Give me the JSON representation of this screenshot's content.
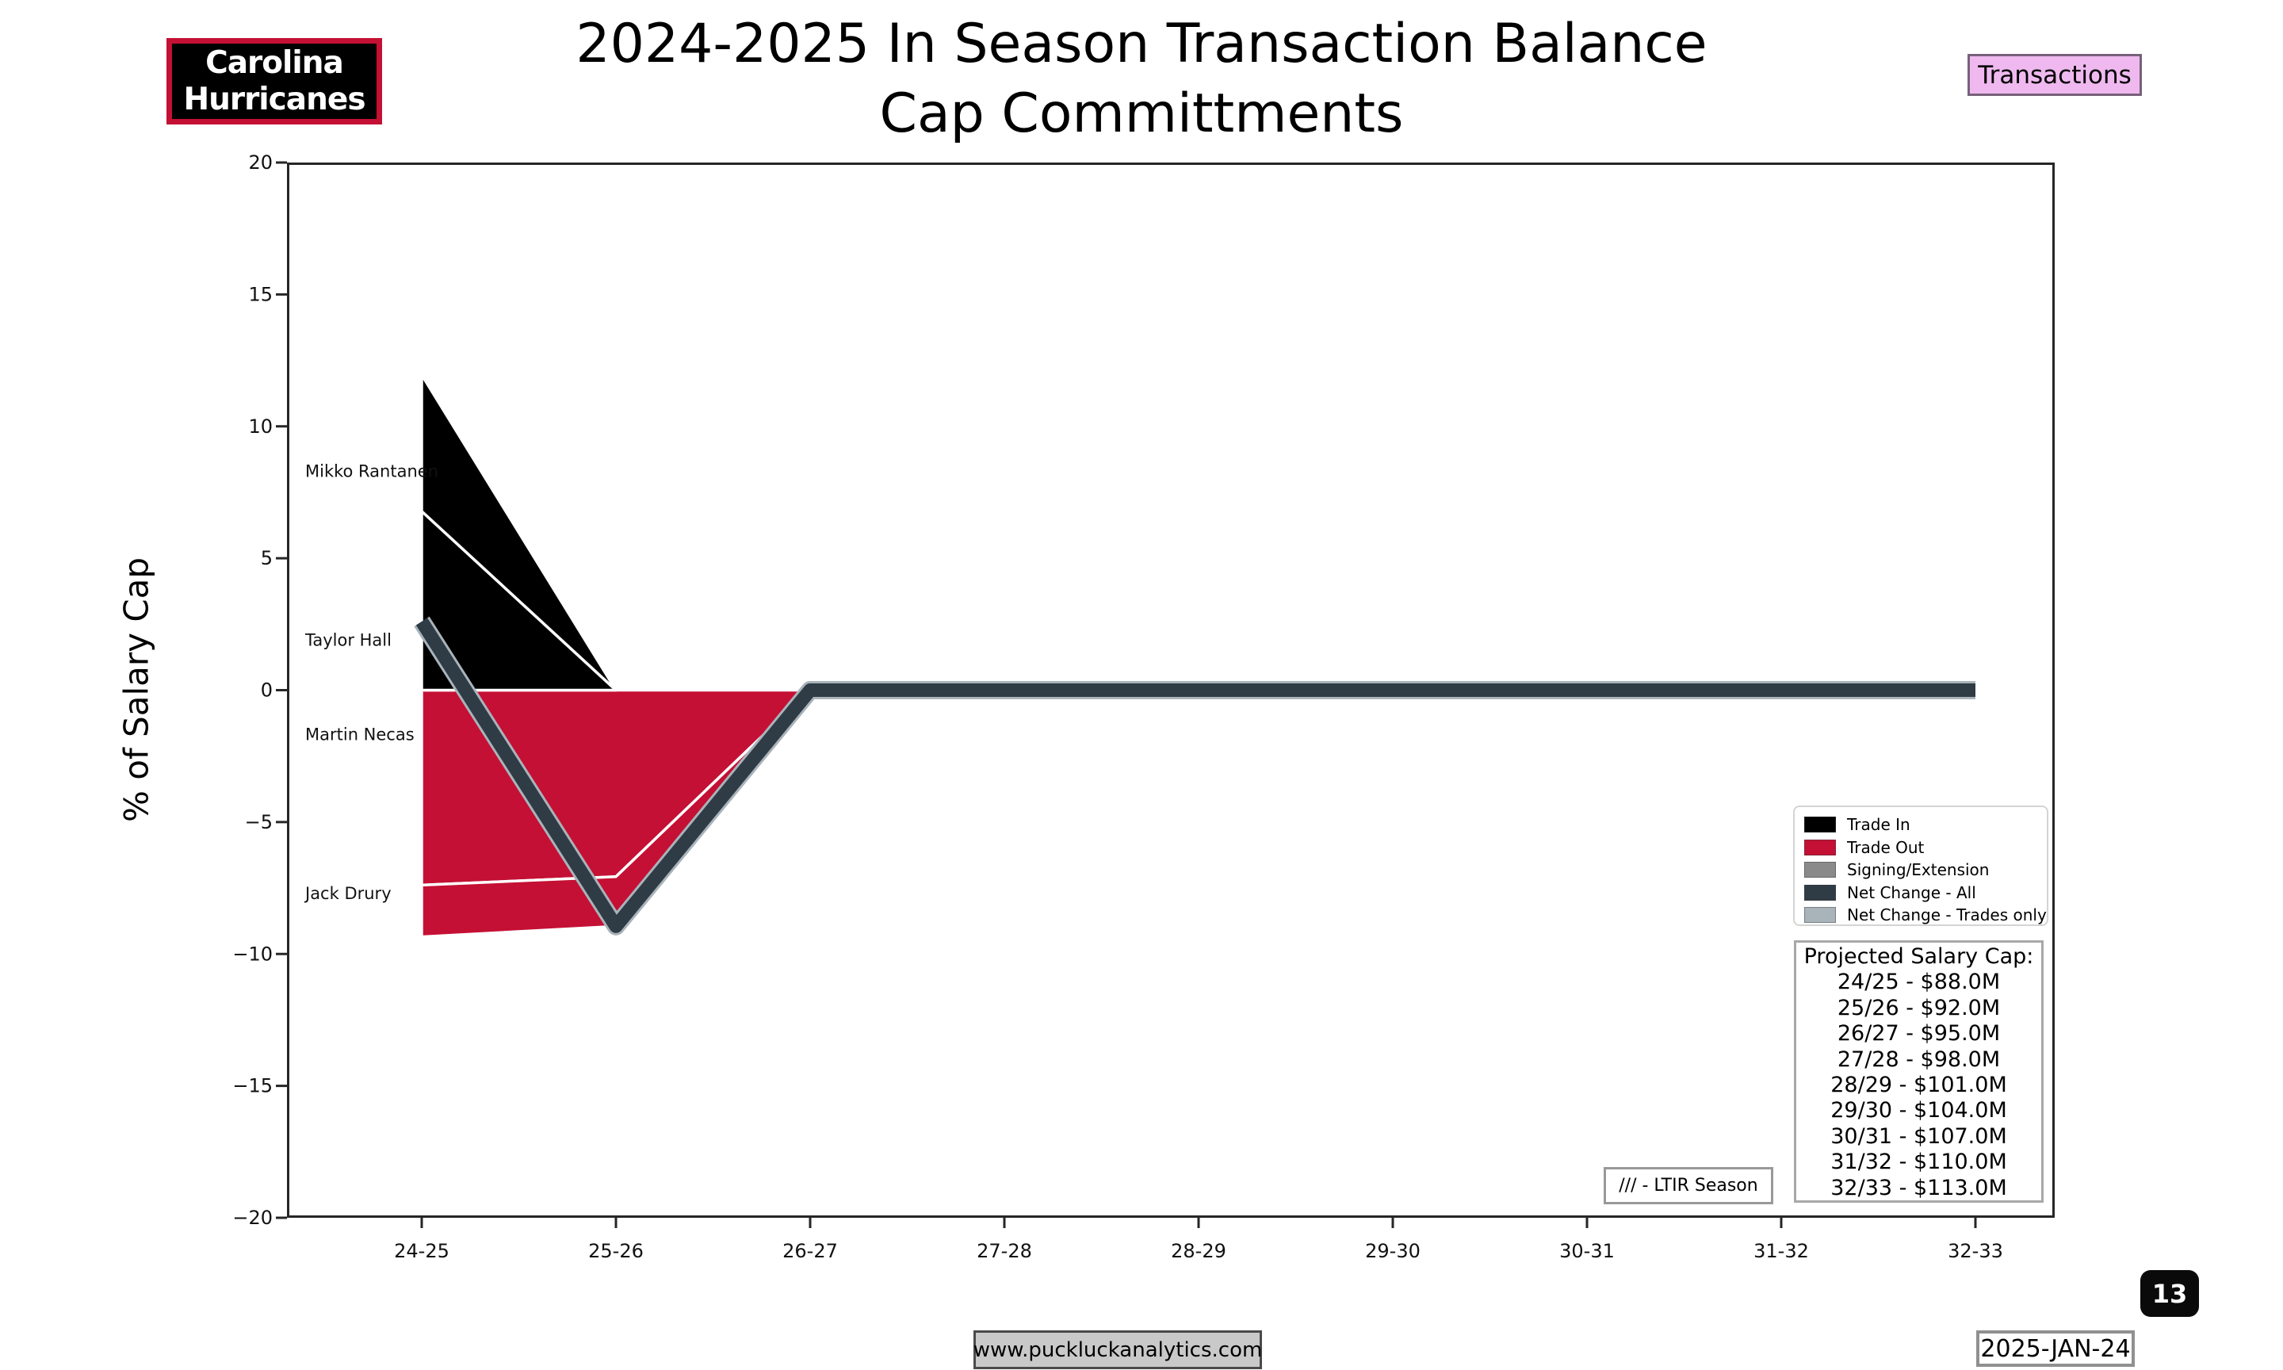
{
  "header": {
    "logo_line1": "Carolina",
    "logo_line2": "Hurricanes",
    "title_line1": "2024-2025 In Season Transaction Balance",
    "title_line2": "Cap Committments",
    "transactions_button": "Transactions"
  },
  "chart_data": {
    "type": "area",
    "title": "2024-2025 In Season Transaction Balance Cap Committments",
    "ylabel": "% of Salary Cap",
    "ylim": [
      -20,
      20
    ],
    "ytick_step": 5,
    "grid": false,
    "seasons": [
      "24-25",
      "25-26",
      "26-27",
      "27-28",
      "28-29",
      "29-30",
      "30-31",
      "31-32",
      "32-33"
    ],
    "stacks": {
      "trade_in": {
        "color": "#000000",
        "series": [
          {
            "name": "Taylor Hall",
            "values": [
              6.78,
              0,
              0,
              0,
              0,
              0,
              0,
              0,
              0
            ]
          },
          {
            "name": "Mikko Rantanen",
            "values": [
              5.17,
              0,
              0,
              0,
              0,
              0,
              0,
              0,
              0
            ]
          }
        ]
      },
      "trade_out": {
        "color": "#C41034",
        "series": [
          {
            "name": "Martin Necas",
            "values": [
              -7.39,
              -7.07,
              0,
              0,
              0,
              0,
              0,
              0,
              0
            ]
          },
          {
            "name": "Jack Drury",
            "values": [
              -1.96,
              -1.88,
              0,
              0,
              0,
              0,
              0,
              0,
              0
            ]
          }
        ]
      }
    },
    "lines": {
      "net_change_trades_only": {
        "label": "Net Change - Trades only",
        "color": "#A9B3BA",
        "values": [
          2.6,
          -8.95,
          0,
          0,
          0,
          0,
          0,
          0,
          0
        ]
      },
      "net_change_all": {
        "label": "Net Change - All",
        "color": "#2F3B45",
        "values": [
          2.6,
          -8.95,
          0,
          0,
          0,
          0,
          0,
          0,
          0
        ]
      }
    },
    "player_labels": [
      {
        "label": "Mikko Rantanen",
        "y_value": 8.32
      },
      {
        "label": "Taylor Hall",
        "y_value": 1.93
      },
      {
        "label": "Martin Necas",
        "y_value": -1.66
      },
      {
        "label": "Jack Drury",
        "y_value": -7.68
      }
    ]
  },
  "legend": {
    "items": [
      {
        "label": "Trade In",
        "color": "#000000"
      },
      {
        "label": "Trade Out",
        "color": "#C41034"
      },
      {
        "label": "Signing/Extension",
        "color": "#8A8A8A"
      },
      {
        "label": "Net Change - All",
        "color": "#2F3B45"
      },
      {
        "label": "Net Change - Trades only",
        "color": "#A9B3BA"
      }
    ]
  },
  "salary_cap_box": {
    "title": "Projected Salary Cap:",
    "rows": [
      "24/25 - $88.0M",
      "25/26 - $92.0M",
      "26/27 - $95.0M",
      "27/28 - $98.0M",
      "28/29 - $101.0M",
      "29/30 - $104.0M",
      "30/31 - $107.0M",
      "31/32 - $110.0M",
      "32/33 - $113.0M"
    ]
  },
  "ltir_note": "/// - LTIR Season",
  "footer": {
    "website": "www.puckluckanalytics.com",
    "page_number": "13",
    "date": "2025-JAN-24"
  }
}
